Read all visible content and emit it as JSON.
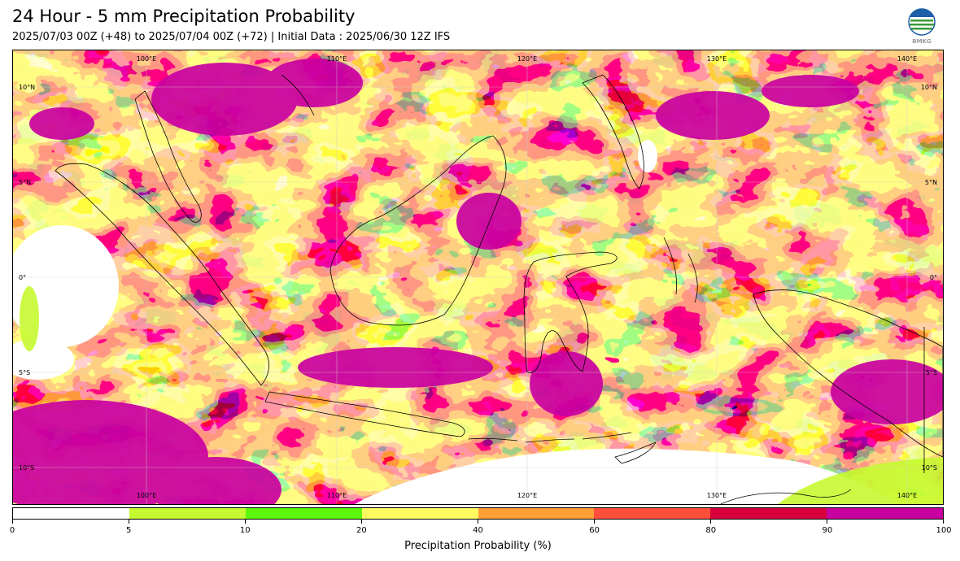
{
  "title": "24 Hour - 5 mm Precipitation Probability",
  "subtitle": "2025/07/03 00Z (+48) to 2025/07/04 00Z (+72) | Initial Data : 2025/06/30 12Z IFS",
  "logo": {
    "text": "BMKG",
    "icon": "bmkg-logo-icon"
  },
  "map": {
    "projection": "plate-carree",
    "lon_range": [
      95,
      141
    ],
    "lat_range": [
      -12,
      11
    ],
    "lon_labels": [
      "100°E",
      "110°E",
      "120°E",
      "130°E",
      "140°E"
    ],
    "lat_labels": [
      "10°N",
      "5°N",
      "0°",
      "5°S",
      "10°S"
    ],
    "grid": true
  },
  "colorbar": {
    "label": "Precipitation Probability (%)",
    "ticks": [
      "0",
      "5",
      "10",
      "20",
      "40",
      "60",
      "80",
      "90",
      "100"
    ],
    "colors": [
      "#ffffff",
      "#c6fa30",
      "#5cf70c",
      "#fefb61",
      "#ff9f36",
      "#ff4f3b",
      "#d8003c",
      "#c900a1"
    ]
  }
}
